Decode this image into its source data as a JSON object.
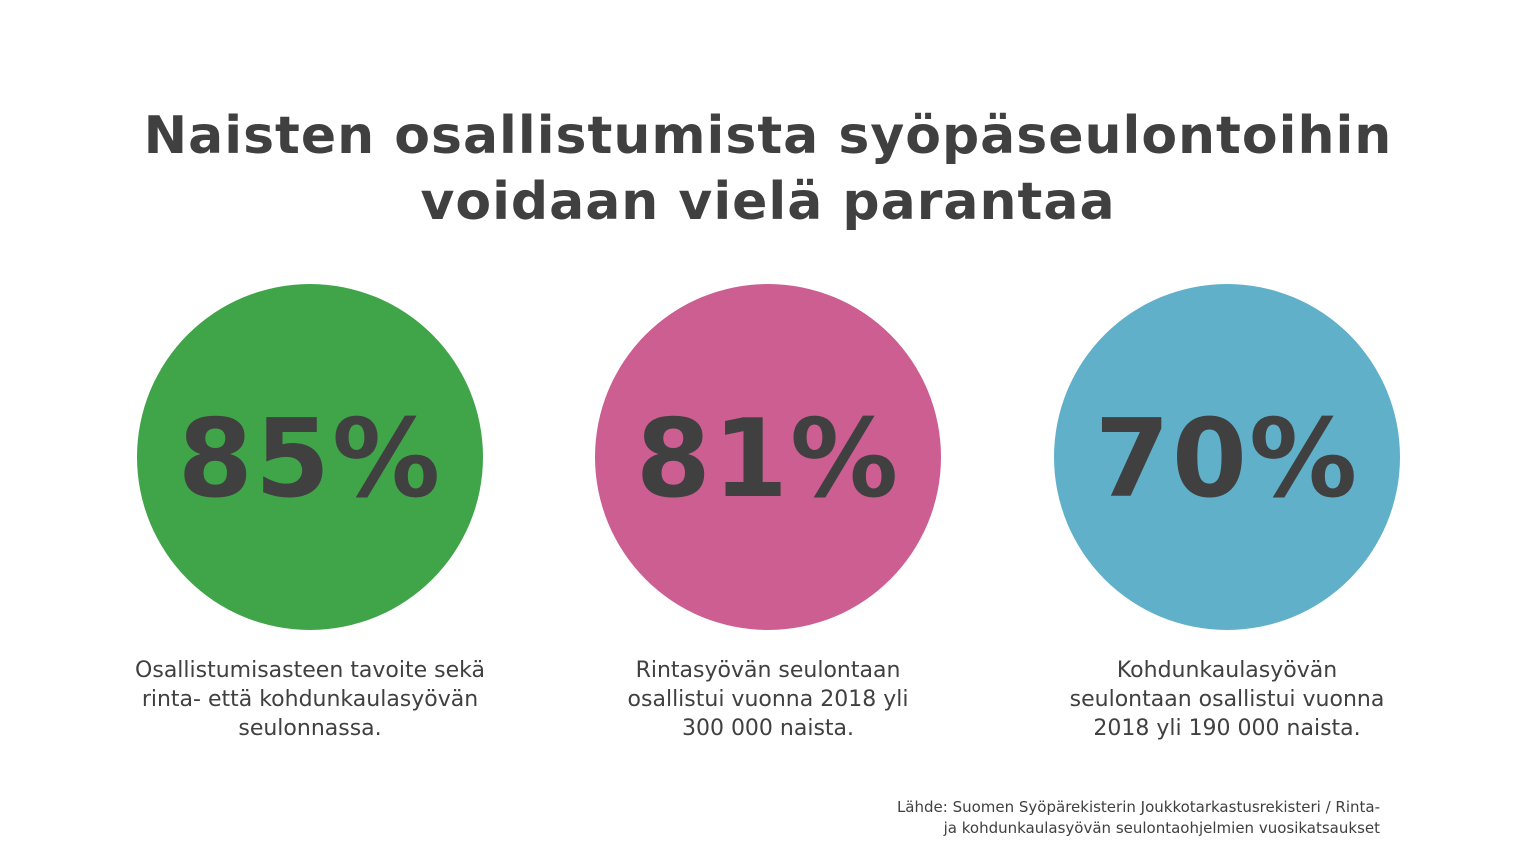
{
  "title": {
    "line1": "Naisten osallistumista syöpäseulontoihin",
    "line2": "voidaan vielä parantaa"
  },
  "stats": [
    {
      "value": "85%",
      "color": "#40A449",
      "desc": [
        "Osallistumisasteen tavoite sekä",
        "rinta- että kohdunkaulasyövän",
        "seulonnassa."
      ]
    },
    {
      "value": "81%",
      "color": "#CC5E91",
      "desc": [
        "Rintasyövän seulontaan",
        "osallistui vuonna 2018 yli",
        "300 000 naista."
      ]
    },
    {
      "value": "70%",
      "color": "#60B0C9",
      "desc": [
        "Kohdunkaulasyövän",
        "seulontaan osallistui vuonna",
        "2018 yli 190 000 naista."
      ]
    }
  ],
  "source": {
    "line1": "Lähde: Suomen Syöpärekisterin Joukkotarkastusrekisteri / Rinta-",
    "line2": "ja kohdunkaulasyövän seulontaohjelmien vuosikatsaukset"
  }
}
